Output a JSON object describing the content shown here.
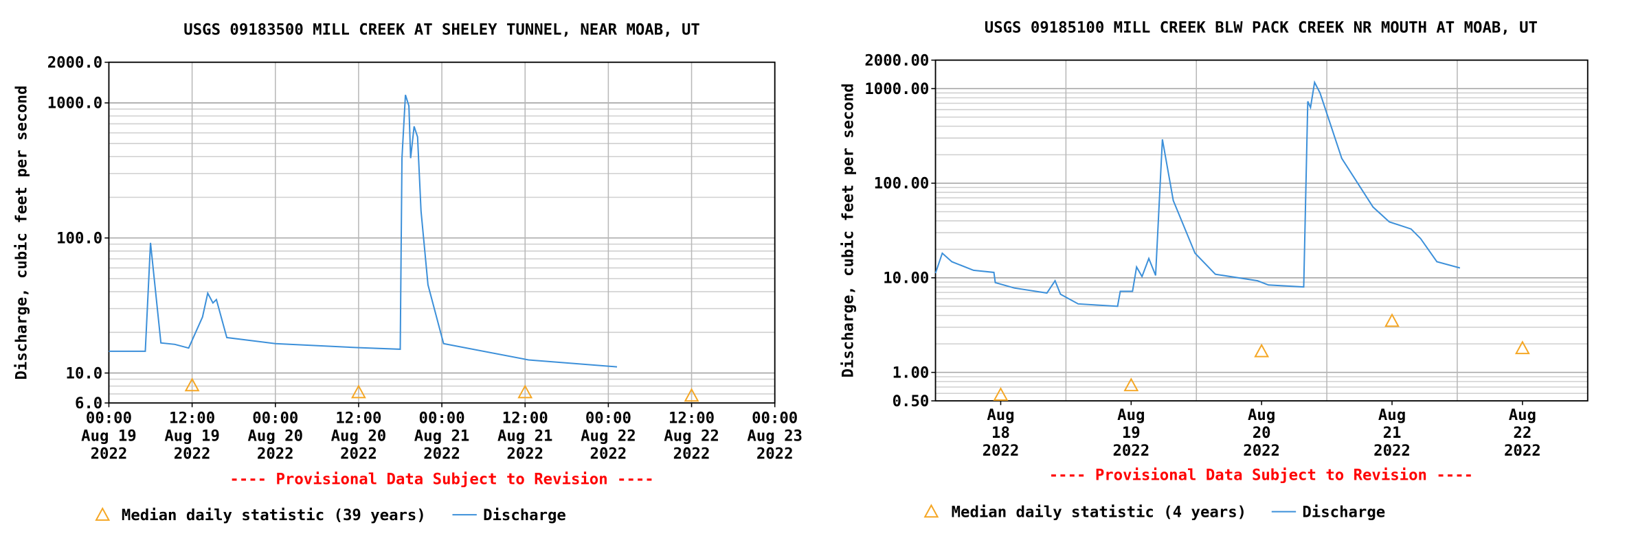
{
  "chart_data": [
    {
      "type": "line",
      "title": "USGS 09183500 MILL CREEK AT SHELEY TUNNEL, NEAR MOAB, UT",
      "ylabel": "Discharge, cubic feet per second",
      "note": "---- Provisional Data Subject to Revision ----",
      "ylog": true,
      "grid": true,
      "xgrid": true,
      "ylim": [
        6,
        2000
      ],
      "yticks": [
        {
          "value": 6,
          "label": "6.0"
        },
        {
          "value": 10,
          "label": "10.0"
        },
        {
          "value": 100,
          "label": "100.0"
        },
        {
          "value": 1000,
          "label": "1000.0"
        },
        {
          "value": 2000,
          "label": "2000.0"
        }
      ],
      "xlim": [
        "2022-08-19T00:00",
        "2022-08-23T00:00"
      ],
      "xticks": [
        {
          "value": "2022-08-19T00:00",
          "label": [
            "00:00",
            "Aug 19",
            "2022"
          ]
        },
        {
          "value": "2022-08-19T12:00",
          "label": [
            "12:00",
            "Aug 19",
            "2022"
          ]
        },
        {
          "value": "2022-08-20T00:00",
          "label": [
            "00:00",
            "Aug 20",
            "2022"
          ]
        },
        {
          "value": "2022-08-20T12:00",
          "label": [
            "12:00",
            "Aug 20",
            "2022"
          ]
        },
        {
          "value": "2022-08-21T00:00",
          "label": [
            "00:00",
            "Aug 21",
            "2022"
          ]
        },
        {
          "value": "2022-08-21T12:00",
          "label": [
            "12:00",
            "Aug 21",
            "2022"
          ]
        },
        {
          "value": "2022-08-22T00:00",
          "label": [
            "00:00",
            "Aug 22",
            "2022"
          ]
        },
        {
          "value": "2022-08-22T12:00",
          "label": [
            "12:00",
            "Aug 22",
            "2022"
          ]
        },
        {
          "value": "2022-08-23T00:00",
          "label": [
            "00:00",
            "Aug 23",
            "2022"
          ]
        }
      ],
      "series": [
        {
          "name": "Median daily statistic (39 years)",
          "color": "#f5a623",
          "marker": "triangle",
          "x": [
            "2022-08-19T12:00",
            "2022-08-20T12:00",
            "2022-08-21T12:00",
            "2022-08-22T12:00"
          ],
          "values": [
            8.1,
            7.2,
            7.2,
            6.8
          ]
        },
        {
          "name": "Discharge",
          "color": "#3b8fd9",
          "x": [
            "2022-08-19T00:00",
            "2022-08-19T05:15",
            "2022-08-19T06:00",
            "2022-08-19T07:30",
            "2022-08-19T09:30",
            "2022-08-19T11:30",
            "2022-08-19T13:30",
            "2022-08-19T14:15",
            "2022-08-19T15:00",
            "2022-08-19T15:30",
            "2022-08-19T17:00",
            "2022-08-20T00:00",
            "2022-08-20T12:00",
            "2022-08-20T18:00",
            "2022-08-20T18:15",
            "2022-08-20T18:45",
            "2022-08-20T19:15",
            "2022-08-20T19:30",
            "2022-08-20T20:00",
            "2022-08-20T20:30",
            "2022-08-20T21:00",
            "2022-08-20T22:00",
            "2022-08-21T00:15",
            "2022-08-21T12:30",
            "2022-08-22T01:15"
          ],
          "values": [
            14.5,
            14.5,
            92,
            16.7,
            16.3,
            15.3,
            26,
            39,
            33,
            35,
            18.3,
            16.5,
            15.4,
            15,
            390,
            1146,
            950,
            390,
            670,
            560,
            158,
            45,
            16.5,
            12.5,
            11.1
          ]
        }
      ]
    },
    {
      "type": "line",
      "title": "USGS 09185100 MILL CREEK BLW PACK CREEK NR MOUTH AT MOAB, UT",
      "ylabel": "Discharge, cubic feet per second",
      "note": "---- Provisional Data Subject to Revision ----",
      "ylog": true,
      "grid": true,
      "xgrid": [
        "2022-08-19T00:00",
        "2022-08-20T00:00",
        "2022-08-21T00:00",
        "2022-08-22T00:00"
      ],
      "ylim": [
        0.5,
        2000
      ],
      "yticks": [
        {
          "value": 0.5,
          "label": "0.50"
        },
        {
          "value": 1,
          "label": "1.00"
        },
        {
          "value": 10,
          "label": "10.00"
        },
        {
          "value": 100,
          "label": "100.00"
        },
        {
          "value": 1000,
          "label": "1000.00"
        },
        {
          "value": 2000,
          "label": "2000.00"
        }
      ],
      "xlim": [
        "2022-08-18T00:00",
        "2022-08-23T00:00"
      ],
      "xticks": [
        {
          "value": "2022-08-18T12:00",
          "label": [
            "Aug",
            "18",
            "2022"
          ]
        },
        {
          "value": "2022-08-19T12:00",
          "label": [
            "Aug",
            "19",
            "2022"
          ]
        },
        {
          "value": "2022-08-20T12:00",
          "label": [
            "Aug",
            "20",
            "2022"
          ]
        },
        {
          "value": "2022-08-21T12:00",
          "label": [
            "Aug",
            "21",
            "2022"
          ]
        },
        {
          "value": "2022-08-22T12:00",
          "label": [
            "Aug",
            "22",
            "2022"
          ]
        }
      ],
      "series": [
        {
          "name": "Median daily statistic (4 years)",
          "color": "#f5a623",
          "marker": "triangle",
          "x": [
            "2022-08-18T12:00",
            "2022-08-19T12:00",
            "2022-08-20T12:00",
            "2022-08-21T12:00",
            "2022-08-22T12:00"
          ],
          "values": [
            0.58,
            0.73,
            1.67,
            3.5,
            1.8
          ]
        },
        {
          "name": "Discharge",
          "color": "#3b8fd9",
          "x": [
            "2022-08-18T00:00",
            "2022-08-18T01:15",
            "2022-08-18T03:00",
            "2022-08-18T07:00",
            "2022-08-18T10:45",
            "2022-08-18T11:00",
            "2022-08-18T14:30",
            "2022-08-18T20:30",
            "2022-08-18T22:00",
            "2022-08-18T23:00",
            "2022-08-19T02:15",
            "2022-08-19T09:30",
            "2022-08-19T10:00",
            "2022-08-19T12:15",
            "2022-08-19T13:00",
            "2022-08-19T14:00",
            "2022-08-19T15:15",
            "2022-08-19T16:30",
            "2022-08-19T17:45",
            "2022-08-19T19:45",
            "2022-08-19T23:45",
            "2022-08-20T03:30",
            "2022-08-20T11:15",
            "2022-08-20T13:15",
            "2022-08-20T19:45",
            "2022-08-20T20:30",
            "2022-08-20T21:00",
            "2022-08-20T21:45",
            "2022-08-20T22:45",
            "2022-08-21T02:45",
            "2022-08-21T08:30",
            "2022-08-21T11:30",
            "2022-08-21T15:30",
            "2022-08-21T17:15",
            "2022-08-21T20:15",
            "2022-08-22T00:30"
          ],
          "values": [
            11.2,
            18.2,
            14.8,
            12.0,
            11.4,
            8.9,
            7.8,
            6.9,
            9.3,
            6.7,
            5.3,
            5.0,
            7.2,
            7.2,
            13.0,
            10.3,
            16.0,
            10.6,
            291,
            65.6,
            18.2,
            10.9,
            9.3,
            8.4,
            8.0,
            733,
            631,
            1164,
            900,
            183,
            56,
            39,
            32.8,
            26,
            14.8,
            12.7
          ]
        }
      ]
    }
  ]
}
